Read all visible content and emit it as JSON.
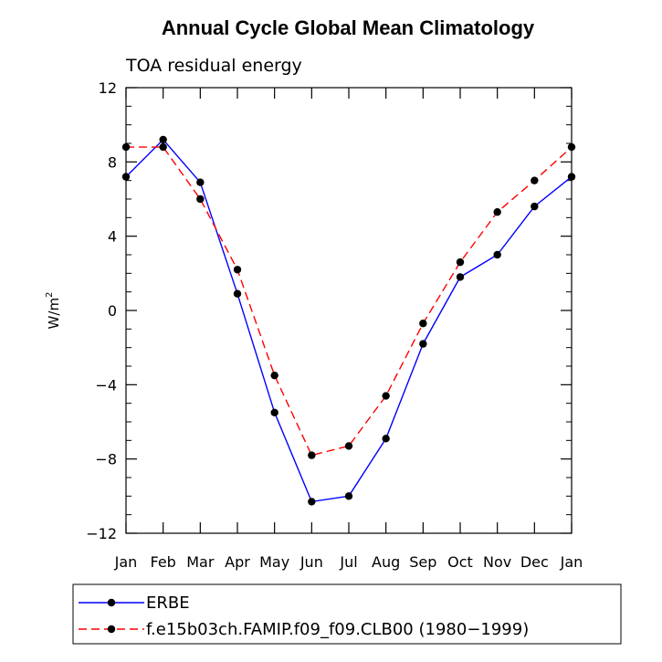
{
  "chart_data": {
    "type": "line",
    "title": "Annual Cycle Global Mean Climatology",
    "subtitle": "TOA residual energy",
    "xlabel": "",
    "ylabel": "W/m",
    "ylabel_sup": "2",
    "categories": [
      "Jan",
      "Feb",
      "Mar",
      "Apr",
      "May",
      "Jun",
      "Jul",
      "Aug",
      "Sep",
      "Oct",
      "Nov",
      "Dec",
      "Jan"
    ],
    "ylim": [
      -12,
      12
    ],
    "yticks": [
      -12,
      -8,
      -4,
      0,
      4,
      8,
      12
    ],
    "ytick_labels": [
      "−12",
      "−8",
      "−4",
      "0",
      "4",
      "8",
      "12"
    ],
    "series": [
      {
        "name": "ERBE",
        "color": "#0000ff",
        "linestyle": "solid",
        "values": [
          7.2,
          9.2,
          6.9,
          0.9,
          -5.5,
          -10.3,
          -10.0,
          -6.9,
          -1.8,
          1.8,
          3.0,
          5.6,
          7.2
        ]
      },
      {
        "name": "f.e15b03ch.FAMIP.f09_f09.CLB00 (1980−1999)",
        "color": "#ff0000",
        "linestyle": "dashed",
        "values": [
          8.8,
          8.8,
          6.0,
          2.2,
          -3.5,
          -7.8,
          -7.3,
          -4.6,
          -0.7,
          2.6,
          5.3,
          7.0,
          8.8
        ]
      }
    ],
    "legend_position": "bottom"
  }
}
